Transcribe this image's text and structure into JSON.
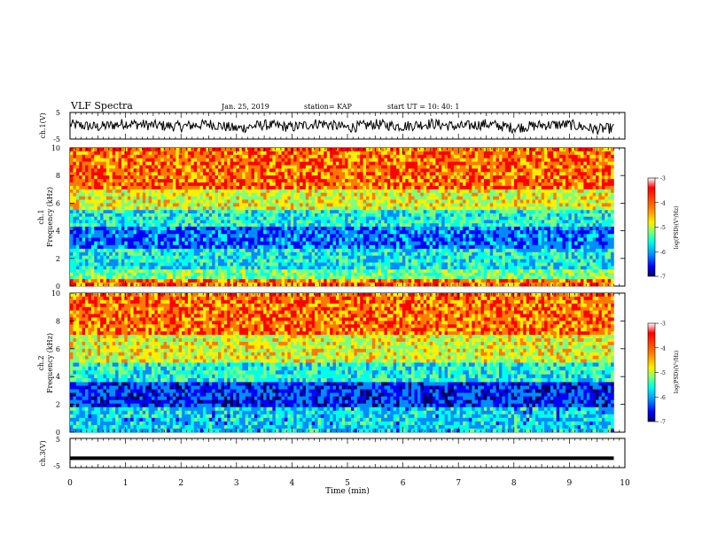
{
  "header": {
    "title": "VLF Spectra",
    "date": "Jan. 25, 2019",
    "station": "station= KAP",
    "start": "start  UT =   10: 40: 1"
  },
  "colorbar": {
    "label": "log(PSD)(V²/Hz)",
    "ticks": [
      "-3",
      "-4",
      "-5",
      "-6",
      "-7"
    ],
    "colors": [
      "#ff0000",
      "#ff7a00",
      "#ffee00",
      "#7dff7d",
      "#00ffe6",
      "#008cff",
      "#0000ff",
      "#000060"
    ]
  },
  "chart_data": [
    {
      "type": "line",
      "name": "ch1-waveform",
      "ylabel": "ch.1(V)",
      "yticks": [
        "5",
        "-5"
      ],
      "ylim": [
        -5,
        5
      ],
      "x": [
        0,
        0.5,
        1,
        1.5,
        2,
        2.5,
        3,
        3.5,
        4,
        4.5,
        5,
        5.5,
        6,
        6.5,
        7,
        7.5,
        8,
        8.5,
        9,
        9.5,
        9.8
      ],
      "y": [
        0.5,
        -0.5,
        1.0,
        0.2,
        -0.3,
        0.8,
        -1.2,
        0.4,
        -0.6,
        1.1,
        -0.8,
        0.6,
        -0.2,
        0.9,
        -0.4,
        0.7,
        -0.9,
        0.3,
        0.5,
        -1.5,
        -1.0
      ]
    },
    {
      "type": "heatmap",
      "name": "ch1-spectrogram",
      "ylabel": "ch.1",
      "ylabel2": "Frequency (kHz)",
      "yticks": [
        "10",
        "8",
        "6",
        "4",
        "2",
        "0"
      ],
      "ylim": [
        0,
        10
      ],
      "x_extent_min": 9.8,
      "bands": [
        {
          "f0": 10,
          "f1": 7,
          "value": "-3.5"
        },
        {
          "f0": 7,
          "f1": 5.5,
          "value": "-4.3"
        },
        {
          "f0": 5.5,
          "f1": 4.3,
          "value": "-5.2"
        },
        {
          "f0": 4.3,
          "f1": 2.7,
          "value": "-6.0"
        },
        {
          "f0": 2.7,
          "f1": 1.2,
          "value": "-5.3"
        },
        {
          "f0": 1.2,
          "f1": 0.5,
          "value": "-4.8"
        },
        {
          "f0": 0.5,
          "f1": 0,
          "value": "-3.6"
        }
      ]
    },
    {
      "type": "heatmap",
      "name": "ch2-spectrogram",
      "ylabel": "ch.2",
      "ylabel2": "Frequency (kHz)",
      "yticks": [
        "10",
        "8",
        "6",
        "4",
        "2",
        "0"
      ],
      "ylim": [
        0,
        10
      ],
      "x_extent_min": 9.8,
      "bands": [
        {
          "f0": 10,
          "f1": 7,
          "value": "-3.5"
        },
        {
          "f0": 7,
          "f1": 5,
          "value": "-4.3"
        },
        {
          "f0": 5,
          "f1": 3.6,
          "value": "-5.2"
        },
        {
          "f0": 3.6,
          "f1": 1.8,
          "value": "-6.3"
        },
        {
          "f0": 1.8,
          "f1": 0,
          "value": "-5.5"
        }
      ]
    },
    {
      "type": "line",
      "name": "ch3-waveform",
      "ylabel": "ch.3(V)",
      "yticks": [
        "5",
        "-5"
      ],
      "ylim": [
        -5,
        5
      ],
      "x": [
        0,
        9.8
      ],
      "y": [
        -1.8,
        -1.8
      ],
      "xlabel": "Time (min)",
      "xticks": [
        "0",
        "1",
        "2",
        "3",
        "4",
        "5",
        "6",
        "7",
        "8",
        "9",
        "10"
      ],
      "xlim": [
        0,
        10
      ]
    }
  ]
}
